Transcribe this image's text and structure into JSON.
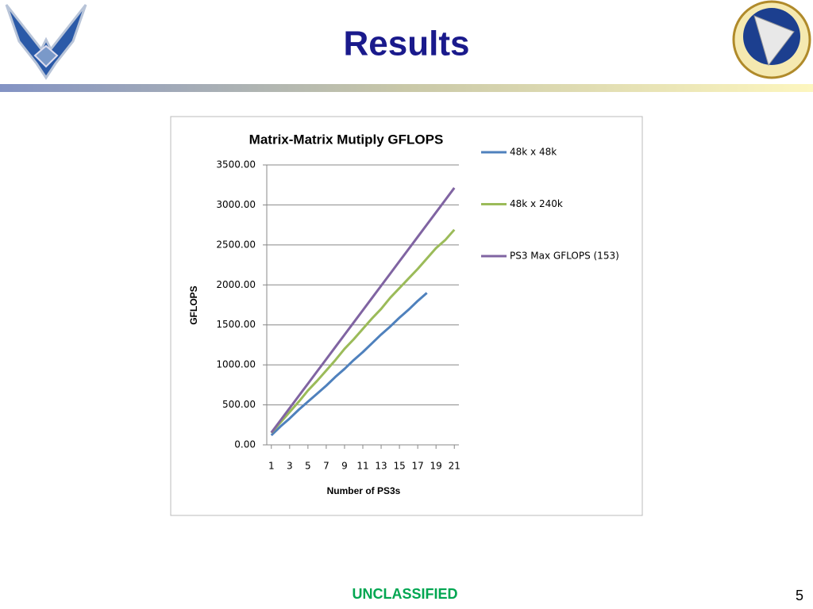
{
  "title": "Results",
  "footer": "UNCLASSIFIED",
  "page_number": 5,
  "chart_data": {
    "type": "line",
    "title": "Matrix-Matrix Mutiply GFLOPS",
    "x_label": "Number of PS3s",
    "y_label": "GFLOPS",
    "x": [
      1,
      2,
      3,
      4,
      5,
      6,
      7,
      8,
      9,
      10,
      11,
      12,
      13,
      14,
      15,
      16,
      17,
      18,
      19,
      20,
      21
    ],
    "xlim": [
      0.5,
      21.5
    ],
    "xticks": [
      1,
      3,
      5,
      7,
      9,
      11,
      13,
      15,
      17,
      19,
      21
    ],
    "ylim": [
      0,
      3500
    ],
    "yticks": [
      {
        "value": 0,
        "label": "0.00"
      },
      {
        "value": 500,
        "label": "500.00"
      },
      {
        "value": 1000,
        "label": "1000.00"
      },
      {
        "value": 1500,
        "label": "1500.00"
      },
      {
        "value": 2000,
        "label": "2000.00"
      },
      {
        "value": 2500,
        "label": "2500.00"
      },
      {
        "value": 3000,
        "label": "3000.00"
      },
      {
        "value": 3500,
        "label": "3500.00"
      }
    ],
    "grid": true,
    "legend": "right",
    "series": [
      {
        "name": "48k x 48k",
        "color": "#4f81bd",
        "values": [
          120,
          230,
          330,
          440,
          540,
          640,
          740,
          850,
          950,
          1060,
          1160,
          1270,
          1380,
          1480,
          1590,
          1690,
          1800,
          1900,
          null,
          null,
          null
        ]
      },
      {
        "name": "48k x 240k",
        "color": "#9bbb59",
        "values": [
          150,
          280,
          410,
          540,
          680,
          800,
          930,
          1060,
          1200,
          1320,
          1450,
          1580,
          1700,
          1840,
          1960,
          2080,
          2200,
          2330,
          2460,
          2560,
          2690
        ]
      },
      {
        "name": "PS3 Max GFLOPS (153)",
        "color": "#8064a2",
        "values": [
          153,
          306,
          459,
          612,
          765,
          918,
          1071,
          1224,
          1377,
          1530,
          1683,
          1836,
          1989,
          2142,
          2295,
          2448,
          2601,
          2754,
          2907,
          3060,
          3213
        ]
      }
    ]
  }
}
